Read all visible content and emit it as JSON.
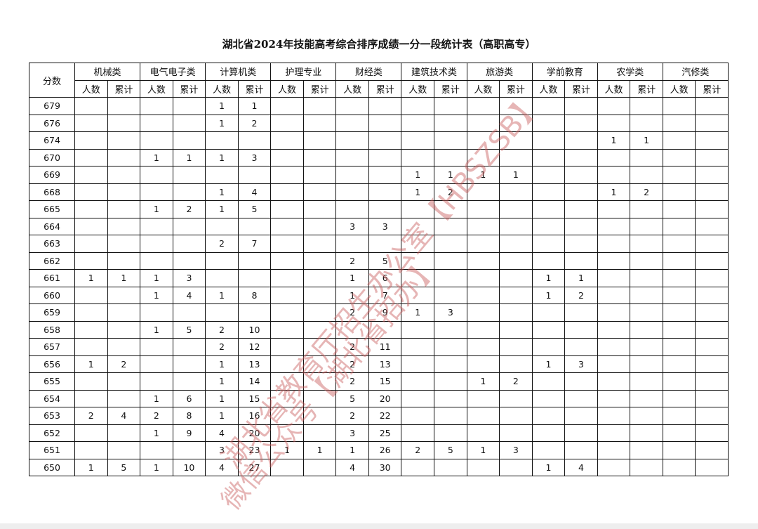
{
  "title": "湖北省2024年技能高考综合排序成绩一分一段统计表（高职高专）",
  "score_header": "分数",
  "sub_headers": [
    "人数",
    "累计"
  ],
  "categories": [
    "机械类",
    "电气电子类",
    "计算机类",
    "护理专业",
    "财经类",
    "建筑技术类",
    "旅游类",
    "学前教育",
    "农学类",
    "汽修类"
  ],
  "rows": [
    {
      "score": "679",
      "cells": [
        "",
        "",
        "",
        "",
        "1",
        "1",
        "",
        "",
        "",
        "",
        "",
        "",
        "",
        "",
        "",
        "",
        "",
        "",
        "",
        ""
      ]
    },
    {
      "score": "676",
      "cells": [
        "",
        "",
        "",
        "",
        "1",
        "2",
        "",
        "",
        "",
        "",
        "",
        "",
        "",
        "",
        "",
        "",
        "",
        "",
        "",
        ""
      ]
    },
    {
      "score": "674",
      "cells": [
        "",
        "",
        "",
        "",
        "",
        "",
        "",
        "",
        "",
        "",
        "",
        "",
        "",
        "",
        "",
        "",
        "1",
        "1",
        "",
        ""
      ]
    },
    {
      "score": "670",
      "cells": [
        "",
        "",
        "1",
        "1",
        "1",
        "3",
        "",
        "",
        "",
        "",
        "",
        "",
        "",
        "",
        "",
        "",
        "",
        "",
        "",
        ""
      ]
    },
    {
      "score": "669",
      "cells": [
        "",
        "",
        "",
        "",
        "",
        "",
        "",
        "",
        "",
        "",
        "1",
        "1",
        "1",
        "1",
        "",
        "",
        "",
        "",
        "",
        ""
      ]
    },
    {
      "score": "668",
      "cells": [
        "",
        "",
        "",
        "",
        "1",
        "4",
        "",
        "",
        "",
        "",
        "1",
        "2",
        "",
        "",
        "",
        "",
        "1",
        "2",
        "",
        ""
      ]
    },
    {
      "score": "665",
      "cells": [
        "",
        "",
        "1",
        "2",
        "1",
        "5",
        "",
        "",
        "",
        "",
        "",
        "",
        "",
        "",
        "",
        "",
        "",
        "",
        "",
        ""
      ]
    },
    {
      "score": "664",
      "cells": [
        "",
        "",
        "",
        "",
        "",
        "",
        "",
        "",
        "3",
        "3",
        "",
        "",
        "",
        "",
        "",
        "",
        "",
        "",
        "",
        ""
      ]
    },
    {
      "score": "663",
      "cells": [
        "",
        "",
        "",
        "",
        "2",
        "7",
        "",
        "",
        "",
        "",
        "",
        "",
        "",
        "",
        "",
        "",
        "",
        "",
        "",
        ""
      ]
    },
    {
      "score": "662",
      "cells": [
        "",
        "",
        "",
        "",
        "",
        "",
        "",
        "",
        "2",
        "5",
        "",
        "",
        "",
        "",
        "",
        "",
        "",
        "",
        "",
        ""
      ]
    },
    {
      "score": "661",
      "cells": [
        "1",
        "1",
        "1",
        "3",
        "",
        "",
        "",
        "",
        "1",
        "6",
        "",
        "",
        "",
        "",
        "1",
        "1",
        "",
        "",
        "",
        ""
      ]
    },
    {
      "score": "660",
      "cells": [
        "",
        "",
        "1",
        "4",
        "1",
        "8",
        "",
        "",
        "1",
        "7",
        "",
        "",
        "",
        "",
        "1",
        "2",
        "",
        "",
        "",
        ""
      ]
    },
    {
      "score": "659",
      "cells": [
        "",
        "",
        "",
        "",
        "",
        "",
        "",
        "",
        "2",
        "9",
        "1",
        "3",
        "",
        "",
        "",
        "",
        "",
        "",
        "",
        ""
      ]
    },
    {
      "score": "658",
      "cells": [
        "",
        "",
        "1",
        "5",
        "2",
        "10",
        "",
        "",
        "",
        "",
        "",
        "",
        "",
        "",
        "",
        "",
        "",
        "",
        "",
        ""
      ]
    },
    {
      "score": "657",
      "cells": [
        "",
        "",
        "",
        "",
        "2",
        "12",
        "",
        "",
        "2",
        "11",
        "",
        "",
        "",
        "",
        "",
        "",
        "",
        "",
        "",
        ""
      ]
    },
    {
      "score": "656",
      "cells": [
        "1",
        "2",
        "",
        "",
        "1",
        "13",
        "",
        "",
        "2",
        "13",
        "",
        "",
        "",
        "",
        "1",
        "3",
        "",
        "",
        "",
        ""
      ]
    },
    {
      "score": "655",
      "cells": [
        "",
        "",
        "",
        "",
        "1",
        "14",
        "",
        "",
        "2",
        "15",
        "",
        "",
        "1",
        "2",
        "",
        "",
        "",
        "",
        "",
        ""
      ]
    },
    {
      "score": "654",
      "cells": [
        "",
        "",
        "1",
        "6",
        "1",
        "15",
        "",
        "",
        "5",
        "20",
        "",
        "",
        "",
        "",
        "",
        "",
        "",
        "",
        "",
        ""
      ]
    },
    {
      "score": "653",
      "cells": [
        "2",
        "4",
        "2",
        "8",
        "1",
        "16",
        "",
        "",
        "2",
        "22",
        "",
        "",
        "",
        "",
        "",
        "",
        "",
        "",
        "",
        ""
      ]
    },
    {
      "score": "652",
      "cells": [
        "",
        "",
        "1",
        "9",
        "4",
        "20",
        "",
        "",
        "3",
        "25",
        "",
        "",
        "",
        "",
        "",
        "",
        "",
        "",
        "",
        ""
      ]
    },
    {
      "score": "651",
      "cells": [
        "",
        "",
        "",
        "",
        "3",
        "23",
        "1",
        "1",
        "1",
        "26",
        "2",
        "5",
        "1",
        "3",
        "",
        "",
        "",
        "",
        "",
        ""
      ]
    },
    {
      "score": "650",
      "cells": [
        "1",
        "5",
        "1",
        "10",
        "4",
        "27",
        "",
        "",
        "4",
        "30",
        "",
        "",
        "",
        "",
        "1",
        "4",
        "",
        "",
        "",
        ""
      ]
    }
  ],
  "watermark": {
    "line1": "湖北省教育厅招生办公室【HBSZSB】",
    "line2": "微信公众号【湖北省招办】",
    "color": "#c85a5a"
  }
}
